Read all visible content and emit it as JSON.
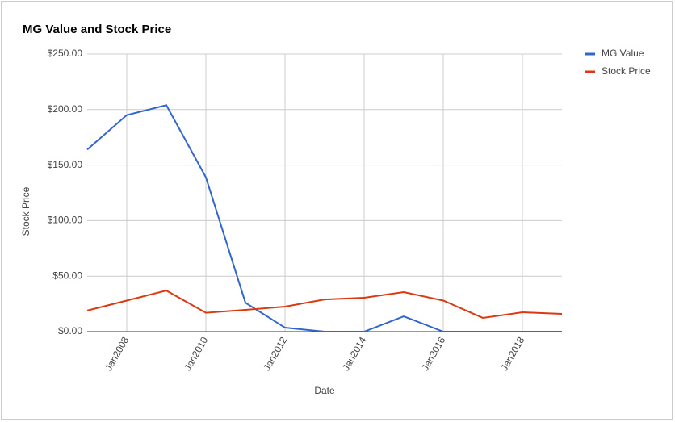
{
  "chart_data": {
    "type": "line",
    "title": "MG Value and Stock Price",
    "x_label": "Date",
    "y_label": "Stock Price",
    "x": [
      2007,
      2008,
      2009,
      2010,
      2011,
      2012,
      2013,
      2014,
      2015,
      2016,
      2017,
      2018,
      2019
    ],
    "xlim": [
      2007,
      2019
    ],
    "xticks": [
      {
        "value": 2008,
        "label": "Jan2008"
      },
      {
        "value": 2010,
        "label": "Jan2010"
      },
      {
        "value": 2012,
        "label": "Jan2012"
      },
      {
        "value": 2014,
        "label": "Jan2014"
      },
      {
        "value": 2016,
        "label": "Jan2016"
      },
      {
        "value": 2018,
        "label": "Jan2018"
      }
    ],
    "ylim": [
      0,
      250
    ],
    "yticks": [
      {
        "value": 0,
        "label": "$0.00"
      },
      {
        "value": 50,
        "label": "$50.00"
      },
      {
        "value": 100,
        "label": "$100.00"
      },
      {
        "value": 150,
        "label": "$150.00"
      },
      {
        "value": 200,
        "label": "$200.00"
      },
      {
        "value": 250,
        "label": "$250.00"
      }
    ],
    "grid": true,
    "legend": "right",
    "series": [
      {
        "name": "MG Value",
        "color": "#3366cc",
        "values": [
          164,
          195,
          204,
          139,
          26,
          3.6,
          0,
          0,
          13.8,
          0,
          0,
          0,
          0
        ]
      },
      {
        "name": "Stock Price",
        "color": "#dc3912",
        "values": [
          19,
          28,
          37,
          17,
          19.6,
          22.5,
          29,
          30.5,
          35.6,
          28,
          12.4,
          17.4,
          16
        ]
      }
    ]
  }
}
